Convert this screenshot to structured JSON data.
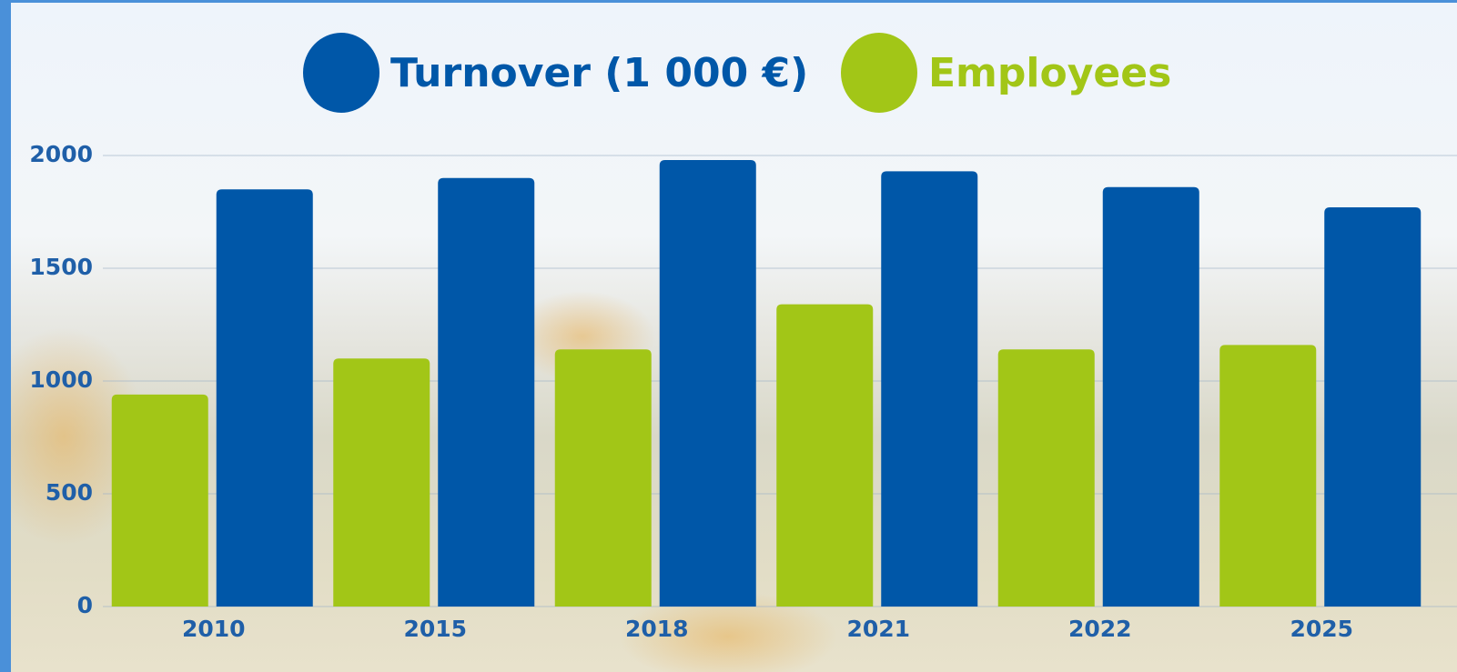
{
  "chart_data": {
    "type": "bar",
    "categories": [
      "2010",
      "2015",
      "2018",
      "2021",
      "2022",
      "2025"
    ],
    "series": [
      {
        "name": "Employees",
        "color": "#a2c617",
        "values": [
          940,
          1100,
          1140,
          1340,
          1140,
          1160
        ]
      },
      {
        "name": "Turnover (1 000 €)",
        "color": "#0057a8",
        "values": [
          1850,
          1900,
          1980,
          1930,
          1860,
          1770
        ]
      }
    ],
    "legend_order": [
      1,
      0
    ],
    "ylim": [
      0,
      2000
    ],
    "yticks": [
      0,
      500,
      1000,
      1500,
      2000
    ],
    "grid": true
  }
}
